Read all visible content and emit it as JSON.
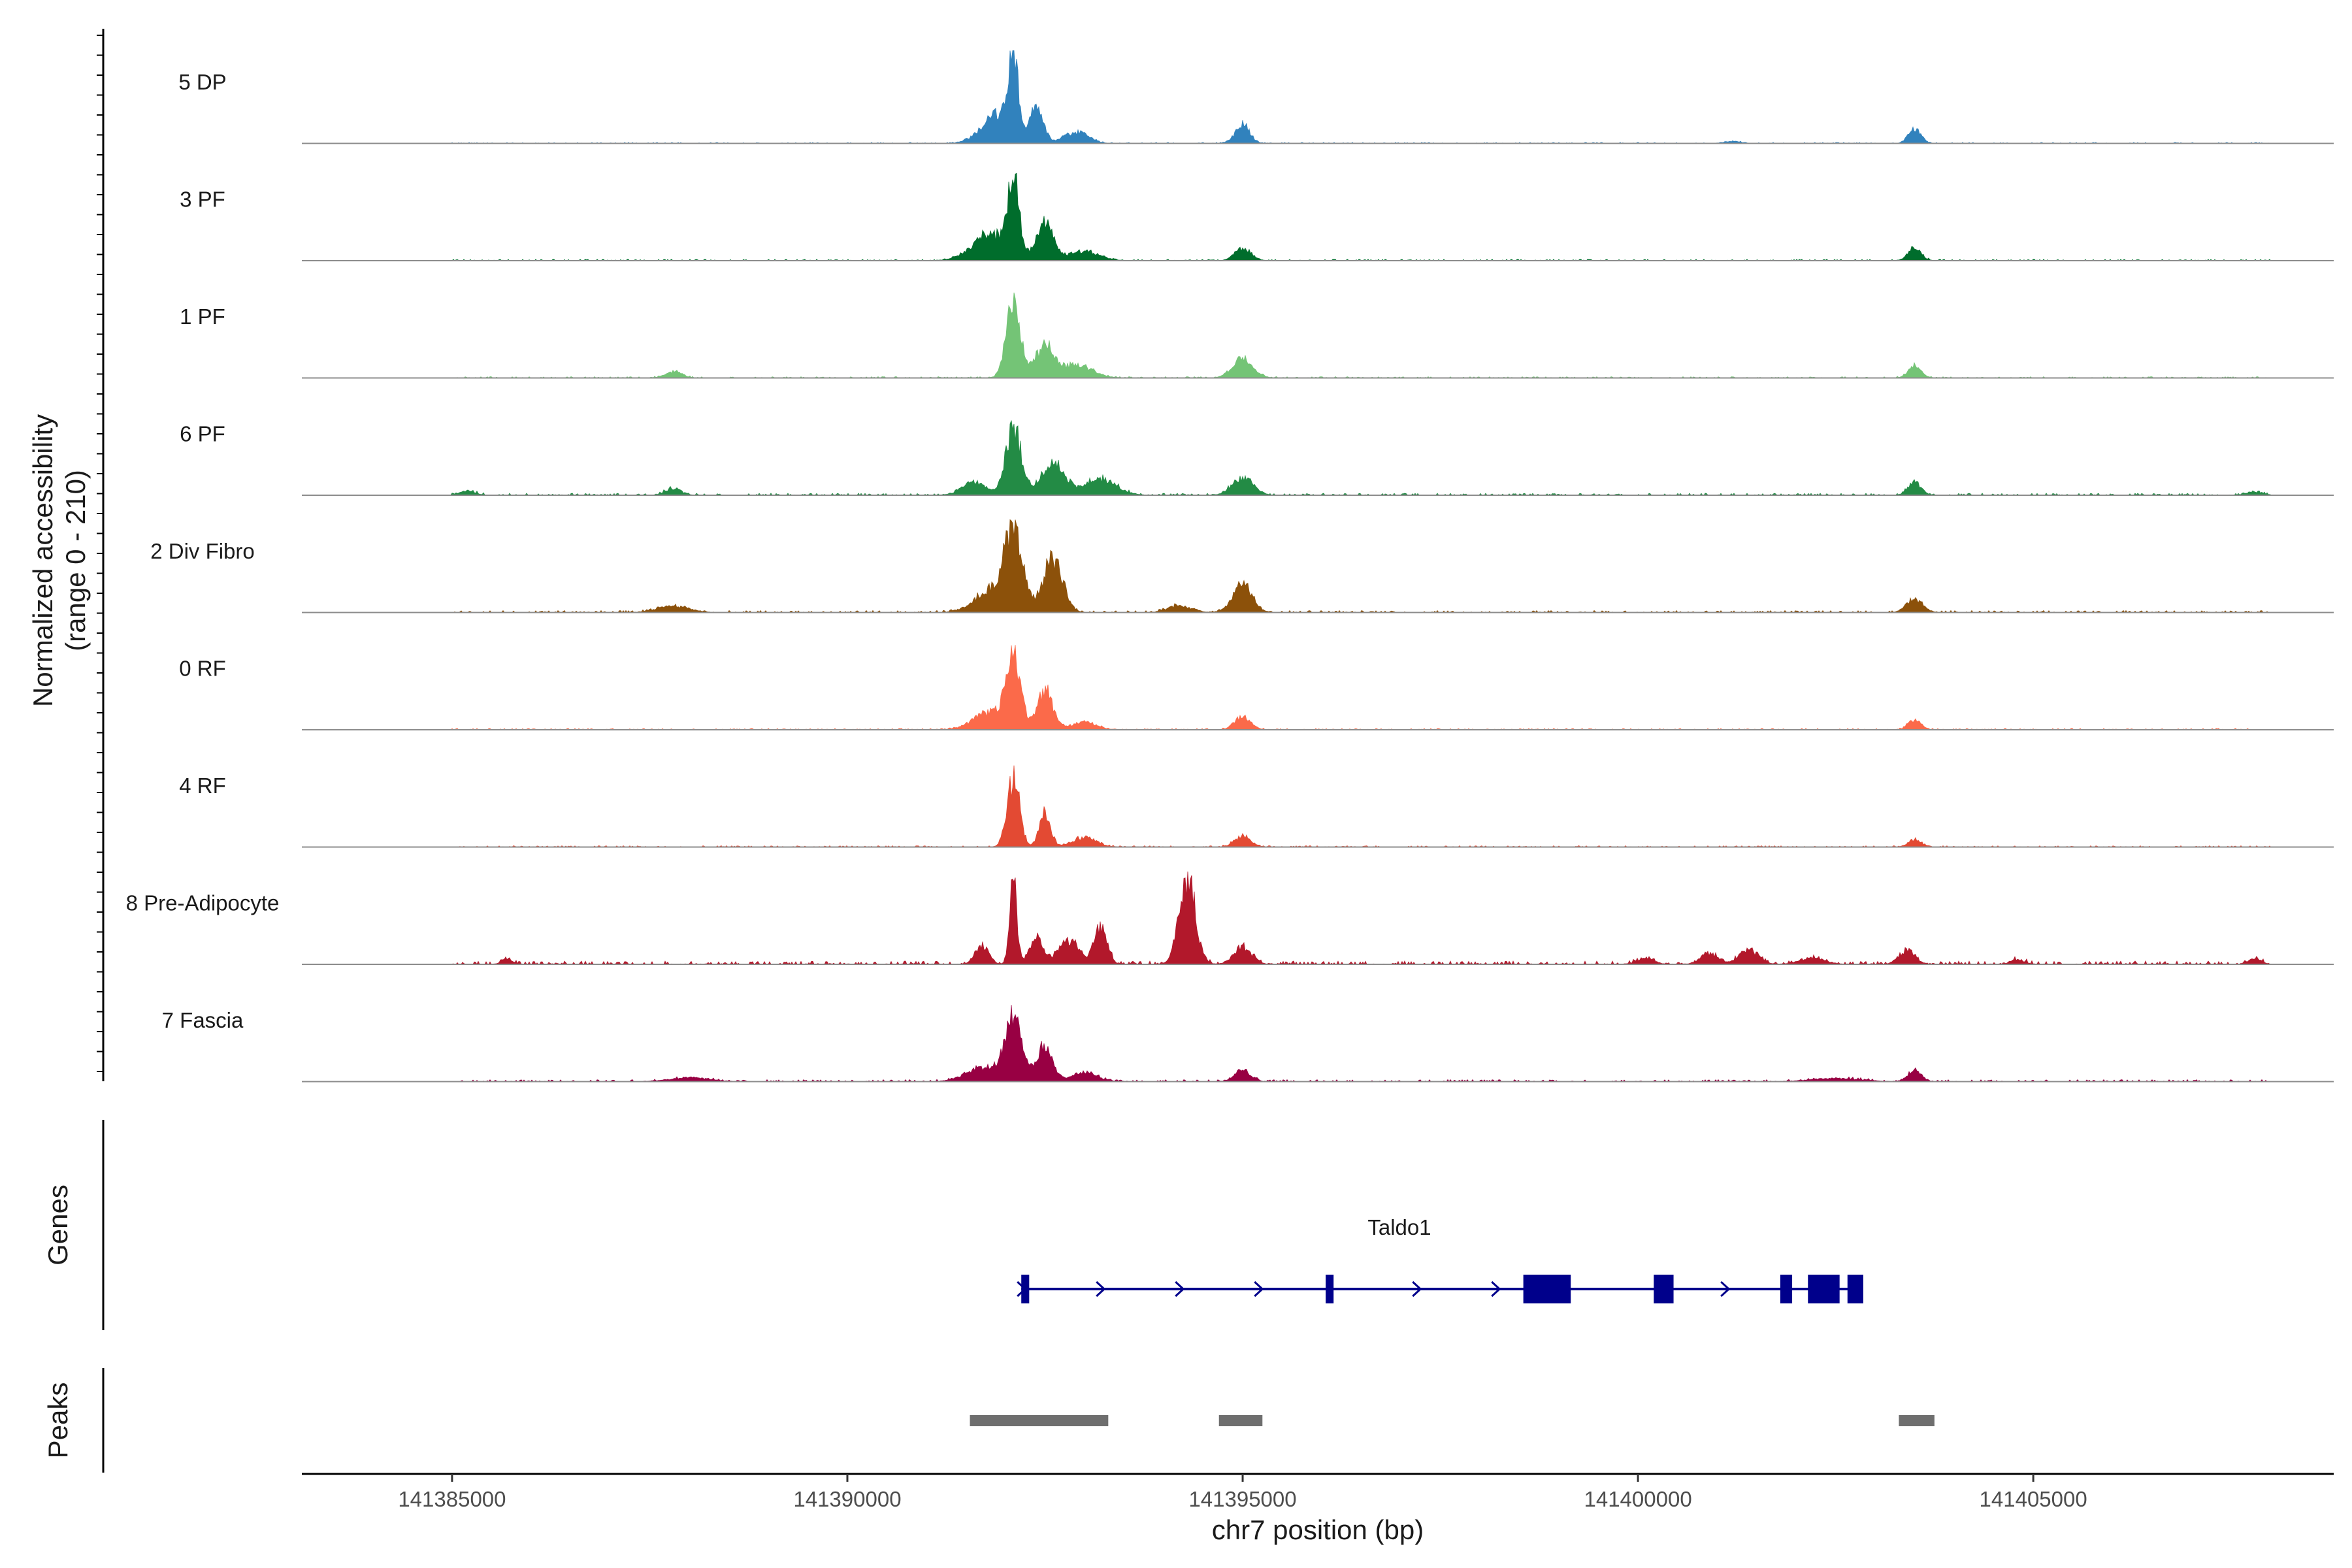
{
  "chart_data": {
    "type": "coverage",
    "title": "",
    "ylabel_line1": "Normalized accessibility",
    "ylabel_line2": "(range 0 - 210)",
    "y_range": [
      0,
      210
    ],
    "xlabel": "chr7 position (bp)",
    "x_range": [
      141383100,
      141408800
    ],
    "x_ticks": [
      141385000,
      141390000,
      141395000,
      141400000,
      141405000
    ],
    "x_tick_labels": [
      "141385000",
      "141390000",
      "141395000",
      "141400000",
      "141405000"
    ],
    "tracks": [
      {
        "name": "5 DP",
        "color": "#3182bd",
        "noise": 1.5,
        "peaks": [
          [
            141392100,
            130,
            60
          ],
          [
            141392400,
            62,
            80
          ],
          [
            141391900,
            45,
            200
          ],
          [
            141392900,
            18,
            150
          ],
          [
            141395000,
            30,
            90
          ],
          [
            141403500,
            22,
            80
          ],
          [
            141401200,
            3,
            100
          ]
        ]
      },
      {
        "name": "3 PF",
        "color": "#006d2c",
        "noise": 2,
        "peaks": [
          [
            141392100,
            125,
            70
          ],
          [
            141392500,
            60,
            110
          ],
          [
            141391800,
            42,
            220
          ],
          [
            141393000,
            15,
            180
          ],
          [
            141395000,
            20,
            100
          ],
          [
            141403500,
            22,
            80
          ]
        ]
      },
      {
        "name": "1 PF",
        "color": "#74c476",
        "noise": 2,
        "peaks": [
          [
            141392100,
            115,
            90
          ],
          [
            141392500,
            50,
            120
          ],
          [
            141392900,
            20,
            200
          ],
          [
            141395000,
            30,
            130
          ],
          [
            141387800,
            10,
            100
          ],
          [
            141403500,
            20,
            80
          ]
        ]
      },
      {
        "name": "6 PF",
        "color": "#238b45",
        "noise": 3,
        "peaks": [
          [
            141392100,
            105,
            100
          ],
          [
            141392600,
            50,
            150
          ],
          [
            141393200,
            25,
            200
          ],
          [
            141391600,
            20,
            150
          ],
          [
            141395000,
            28,
            130
          ],
          [
            141403500,
            20,
            80
          ],
          [
            141387800,
            10,
            100
          ],
          [
            141385200,
            6,
            100
          ],
          [
            141407800,
            5,
            100
          ]
        ]
      },
      {
        "name": "2 Div Fibro",
        "color": "#8c510a",
        "noise": 3,
        "peaks": [
          [
            141392100,
            120,
            120
          ],
          [
            141392600,
            88,
            120
          ],
          [
            141391800,
            32,
            200
          ],
          [
            141395000,
            45,
            120
          ],
          [
            141387800,
            10,
            200
          ],
          [
            141403500,
            22,
            100
          ],
          [
            141394200,
            10,
            150
          ]
        ]
      },
      {
        "name": "0 RF",
        "color": "#fb6a4a",
        "noise": 2,
        "peaks": [
          [
            141392100,
            108,
            90
          ],
          [
            141392500,
            62,
            100
          ],
          [
            141391800,
            28,
            200
          ],
          [
            141393000,
            12,
            150
          ],
          [
            141395000,
            20,
            100
          ],
          [
            141403500,
            15,
            80
          ]
        ]
      },
      {
        "name": "4 RF",
        "color": "#e34a33",
        "noise": 2,
        "peaks": [
          [
            141392100,
            108,
            80
          ],
          [
            141392500,
            55,
            70
          ],
          [
            141393000,
            15,
            150
          ],
          [
            141395000,
            18,
            100
          ],
          [
            141403500,
            12,
            80
          ]
        ]
      },
      {
        "name": "8 Pre-Adipocyte",
        "color": "#b2182b",
        "noise": 5,
        "peaks": [
          [
            141392100,
            135,
            45
          ],
          [
            141391700,
            32,
            80
          ],
          [
            141392400,
            40,
            90
          ],
          [
            141392800,
            38,
            120
          ],
          [
            141393200,
            62,
            80
          ],
          [
            141394300,
            140,
            100
          ],
          [
            141395000,
            28,
            110
          ],
          [
            141385700,
            8,
            70
          ],
          [
            141401400,
            22,
            120
          ],
          [
            141400900,
            18,
            100
          ],
          [
            141403400,
            22,
            100
          ],
          [
            141402200,
            10,
            150
          ],
          [
            141404800,
            8,
            80
          ],
          [
            141407800,
            8,
            80
          ],
          [
            141400100,
            10,
            100
          ]
        ]
      },
      {
        "name": "7 Fascia",
        "color": "#980043",
        "noise": 3,
        "peaks": [
          [
            141392100,
            100,
            110
          ],
          [
            141392500,
            55,
            100
          ],
          [
            141391700,
            22,
            200
          ],
          [
            141393000,
            15,
            150
          ],
          [
            141395000,
            18,
            100
          ],
          [
            141403500,
            20,
            80
          ],
          [
            141388000,
            6,
            250
          ],
          [
            141402500,
            5,
            300
          ]
        ]
      }
    ],
    "genes": {
      "title": "Genes",
      "name": "Taldo1",
      "color": "#00008b",
      "start": 141392200,
      "end": 141402800,
      "strand": "+",
      "exons": [
        [
          141392200,
          141392300
        ],
        [
          141396050,
          141396150
        ],
        [
          141398550,
          141399150
        ],
        [
          141400200,
          141400450
        ],
        [
          141401800,
          141401950
        ],
        [
          141402150,
          141402550
        ],
        [
          141402650,
          141402850
        ]
      ],
      "arrows": [
        141392200,
        141393200,
        141394200,
        141395200,
        141397200,
        141398200,
        141399100,
        141401100
      ]
    },
    "peaks_track": {
      "title": "Peaks",
      "color": "#6e6e6e",
      "regions": [
        [
          141391550,
          141393300
        ],
        [
          141394700,
          141395250
        ],
        [
          141403300,
          141403750
        ]
      ]
    }
  }
}
